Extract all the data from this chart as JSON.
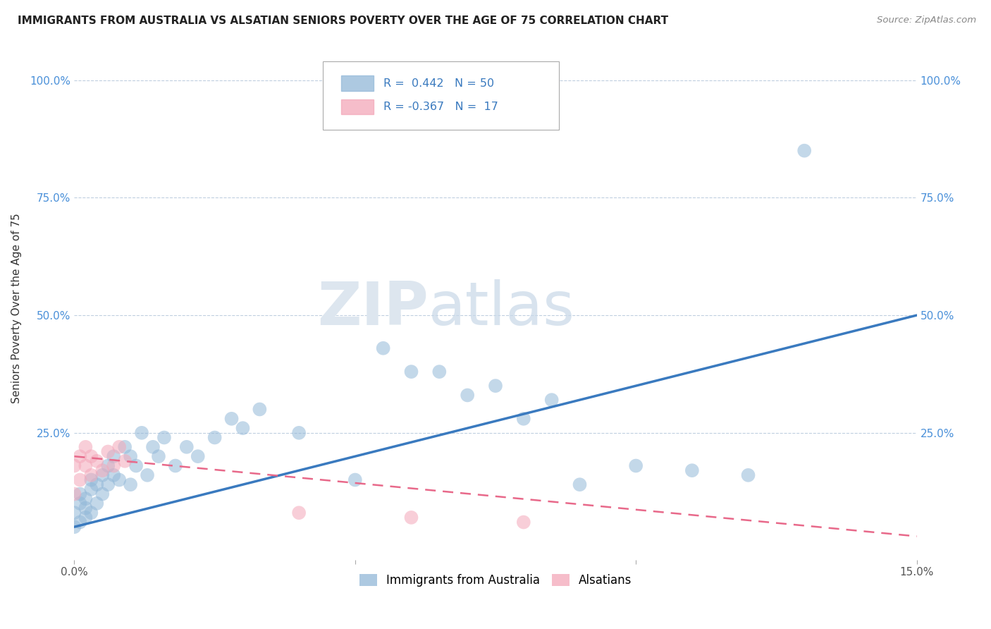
{
  "title": "IMMIGRANTS FROM AUSTRALIA VS ALSATIAN SENIORS POVERTY OVER THE AGE OF 75 CORRELATION CHART",
  "source": "Source: ZipAtlas.com",
  "ylabel": "Seniors Poverty Over the Age of 75",
  "xlim": [
    0.0,
    0.15
  ],
  "ylim": [
    -0.02,
    1.05
  ],
  "color_blue": "#92b8d8",
  "color_pink": "#f4a7b9",
  "line_blue": "#3a7abf",
  "line_pink": "#e8698a",
  "watermark_zip": "ZIP",
  "watermark_atlas": "atlas",
  "blue_scatter_x": [
    0.0,
    0.0,
    0.001,
    0.001,
    0.001,
    0.002,
    0.002,
    0.002,
    0.003,
    0.003,
    0.003,
    0.004,
    0.004,
    0.005,
    0.005,
    0.006,
    0.006,
    0.007,
    0.007,
    0.008,
    0.009,
    0.01,
    0.01,
    0.011,
    0.012,
    0.013,
    0.014,
    0.015,
    0.016,
    0.018,
    0.02,
    0.022,
    0.025,
    0.028,
    0.03,
    0.033,
    0.04,
    0.05,
    0.055,
    0.06,
    0.065,
    0.07,
    0.075,
    0.08,
    0.085,
    0.09,
    0.1,
    0.11,
    0.12,
    0.13
  ],
  "blue_scatter_y": [
    0.05,
    0.08,
    0.06,
    0.1,
    0.12,
    0.07,
    0.11,
    0.09,
    0.13,
    0.08,
    0.15,
    0.1,
    0.14,
    0.12,
    0.16,
    0.14,
    0.18,
    0.16,
    0.2,
    0.15,
    0.22,
    0.14,
    0.2,
    0.18,
    0.25,
    0.16,
    0.22,
    0.2,
    0.24,
    0.18,
    0.22,
    0.2,
    0.24,
    0.28,
    0.26,
    0.3,
    0.25,
    0.15,
    0.43,
    0.38,
    0.38,
    0.33,
    0.35,
    0.28,
    0.32,
    0.14,
    0.18,
    0.17,
    0.16,
    0.85
  ],
  "pink_scatter_x": [
    0.0,
    0.0,
    0.001,
    0.001,
    0.002,
    0.002,
    0.003,
    0.003,
    0.004,
    0.005,
    0.006,
    0.007,
    0.008,
    0.009,
    0.04,
    0.06,
    0.08
  ],
  "pink_scatter_y": [
    0.12,
    0.18,
    0.15,
    0.2,
    0.18,
    0.22,
    0.16,
    0.2,
    0.19,
    0.17,
    0.21,
    0.18,
    0.22,
    0.19,
    0.08,
    0.07,
    0.06
  ],
  "blue_line_x": [
    0.0,
    0.15
  ],
  "blue_line_y": [
    0.05,
    0.5
  ],
  "pink_line_x": [
    0.0,
    0.15
  ],
  "pink_line_y": [
    0.2,
    0.03
  ]
}
